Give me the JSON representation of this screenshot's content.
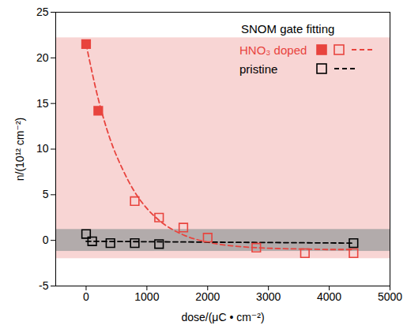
{
  "chart_data": {
    "type": "scatter",
    "xlabel": "dose/(μC • cm⁻²)",
    "ylabel": "n/(10¹² cm⁻²)",
    "xlim": [
      -500,
      5000
    ],
    "xticks": [
      0,
      1000,
      2000,
      3000,
      4000,
      5000
    ],
    "ylim": [
      -5,
      25
    ],
    "yticks": [
      -5,
      0,
      5,
      10,
      15,
      20,
      25
    ],
    "grid": false,
    "legend": "upper right",
    "legend_title": "SNOM gate fitting",
    "bands": [
      {
        "y1": -2,
        "y2": 22.2,
        "color": "#f8d5d4"
      },
      {
        "y1": -1.2,
        "y2": 1.2,
        "color": "#b2abab"
      }
    ],
    "series": [
      {
        "name": "HNO₃ doped",
        "type": "scatter",
        "marker": "filled square",
        "color": "#e8443e",
        "x": [
          0,
          200
        ],
        "values": [
          21.5,
          14.2
        ]
      },
      {
        "name": "HNO₃ doped",
        "type": "scatter",
        "marker": "open square",
        "color": "#e8443e",
        "x": [
          800,
          1200,
          1600,
          2000,
          2800,
          3600,
          4400
        ],
        "values": [
          4.3,
          2.5,
          1.4,
          0.3,
          -0.8,
          -1.4,
          -1.4
        ]
      },
      {
        "name": "HNO₃ doped",
        "type": "line",
        "line_style": "dashed",
        "color": "#e8443e",
        "x": [
          0,
          200,
          400,
          600,
          800,
          1000,
          1200,
          1600,
          2000,
          2400,
          2800,
          3200,
          3600,
          4000,
          4400
        ],
        "values": [
          21.5,
          15.5,
          11,
          7.8,
          5.3,
          3.5,
          2.2,
          0.6,
          -0.2,
          -0.6,
          -0.8,
          -0.9,
          -0.95,
          -1.0,
          -1.0
        ]
      },
      {
        "name": "pristine",
        "type": "scatter",
        "marker": "open square",
        "color": "#000000",
        "x": [
          0,
          100,
          400,
          800,
          1200,
          4400
        ],
        "values": [
          0.7,
          -0.1,
          -0.3,
          -0.3,
          -0.4,
          -0.3
        ]
      },
      {
        "name": "pristine",
        "type": "line",
        "line_style": "dashed",
        "color": "#000000",
        "x": [
          0,
          4400
        ],
        "values": [
          -0.1,
          -0.3
        ]
      }
    ]
  }
}
